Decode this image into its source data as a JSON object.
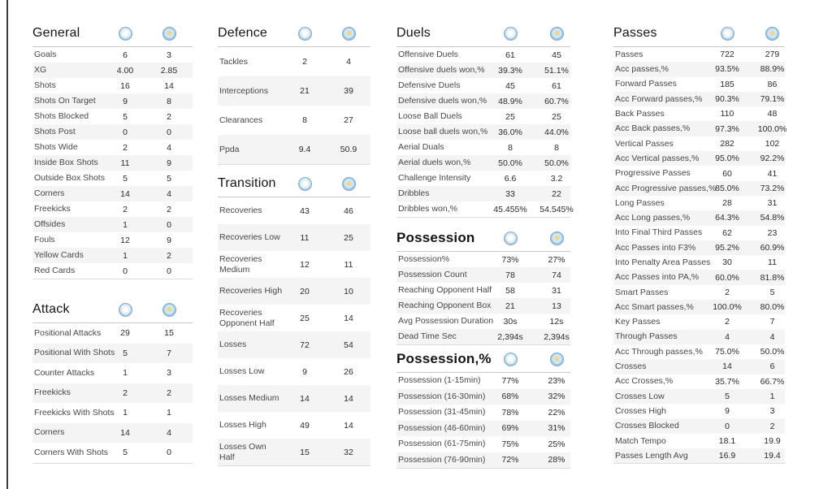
{
  "badges": {
    "home_icon": "man-city-badge-icon",
    "away_icon": "leicester-badge-icon",
    "home_color": "#a3c8e2",
    "away_color": "#9cc7e5"
  },
  "colors": {
    "row_stripe": "#f4f4f4",
    "edge_line": "#3b3b3b",
    "text": "#2b2b2b"
  },
  "columns": [
    {
      "sections": [
        {
          "title": "General",
          "rows": [
            {
              "label": "Goals",
              "home": "6",
              "away": "3"
            },
            {
              "label": "XG",
              "home": "4.00",
              "away": "2.85"
            },
            {
              "label": "Shots",
              "home": "16",
              "away": "14"
            },
            {
              "label": "Shots On Target",
              "home": "9",
              "away": "8"
            },
            {
              "label": "Shots Blocked",
              "home": "5",
              "away": "2"
            },
            {
              "label": "Shots Post",
              "home": "0",
              "away": "0"
            },
            {
              "label": "Shots Wide",
              "home": "2",
              "away": "4"
            },
            {
              "label": "Inside Box Shots",
              "home": "11",
              "away": "9"
            },
            {
              "label": "Outside Box Shots",
              "home": "5",
              "away": "5"
            },
            {
              "label": "Corners",
              "home": "14",
              "away": "4"
            },
            {
              "label": "Freekicks",
              "home": "2",
              "away": "2"
            },
            {
              "label": "Offsides",
              "home": "1",
              "away": "0"
            },
            {
              "label": "Fouls",
              "home": "12",
              "away": "9"
            },
            {
              "label": "Yellow Cards",
              "home": "1",
              "away": "2"
            },
            {
              "label": "Red Cards",
              "home": "0",
              "away": "0"
            }
          ]
        },
        {
          "title": "Attack",
          "rows": [
            {
              "label": "Positional Attacks",
              "home": "29",
              "away": "15"
            },
            {
              "label": "Positional With Shots",
              "home": "5",
              "away": "7"
            },
            {
              "label": "Counter Attacks",
              "home": "1",
              "away": "3"
            },
            {
              "label": "Freekicks",
              "home": "2",
              "away": "2"
            },
            {
              "label": "Freekicks With Shots",
              "home": "1",
              "away": "1"
            },
            {
              "label": "Corners",
              "home": "14",
              "away": "4"
            },
            {
              "label": "Corners With Shots",
              "home": "5",
              "away": "0"
            }
          ]
        }
      ]
    },
    {
      "sections": [
        {
          "title": "Defence",
          "rows": [
            {
              "label": "Tackles",
              "home": "2",
              "away": "4"
            },
            {
              "label": "Interceptions",
              "home": "21",
              "away": "39"
            },
            {
              "label": "Clearances",
              "home": "8",
              "away": "27"
            },
            {
              "label": "Ppda",
              "home": "9.4",
              "away": "50.9"
            }
          ]
        },
        {
          "title": "Transition",
          "rows": [
            {
              "label": "Recoveries",
              "home": "43",
              "away": "46"
            },
            {
              "label": "Recoveries Low",
              "home": "11",
              "away": "25"
            },
            {
              "label": "Recoveries Medium",
              "home": "12",
              "away": "11"
            },
            {
              "label": "Recoveries High",
              "home": "20",
              "away": "10"
            },
            {
              "label": "Recoveries Opponent Half",
              "home": "25",
              "away": "14"
            },
            {
              "label": "Losses",
              "home": "72",
              "away": "54"
            },
            {
              "label": "Losses Low",
              "home": "9",
              "away": "26"
            },
            {
              "label": "Losses Medium",
              "home": "14",
              "away": "14"
            },
            {
              "label": "Losses High",
              "home": "49",
              "away": "14"
            },
            {
              "label": "Losses Own Half",
              "home": "15",
              "away": "32"
            }
          ]
        }
      ]
    },
    {
      "sections": [
        {
          "title": "Duels",
          "rows": [
            {
              "label": "Offensive Duels",
              "home": "61",
              "away": "45"
            },
            {
              "label": "Offensive duels won,%",
              "home": "39.3%",
              "away": "51.1%"
            },
            {
              "label": "Defensive Duels",
              "home": "45",
              "away": "61"
            },
            {
              "label": "Defensive duels won,%",
              "home": "48.9%",
              "away": "60.7%"
            },
            {
              "label": "Loose Ball Duels",
              "home": "25",
              "away": "25"
            },
            {
              "label": "Loose ball duels won,%",
              "home": "36.0%",
              "away": "44.0%"
            },
            {
              "label": "Aerial Duals",
              "home": "8",
              "away": "8"
            },
            {
              "label": "Aerial duels won,%",
              "home": "50.0%",
              "away": "50.0%"
            },
            {
              "label": "Challenge Intensity",
              "home": "6.6",
              "away": "3.2"
            },
            {
              "label": "Dribbles",
              "home": "33",
              "away": "22"
            },
            {
              "label": "Dribbles won,%",
              "home": "45.455%",
              "away": "54.545%"
            }
          ]
        },
        {
          "title": "Possession",
          "rows": [
            {
              "label": "Possession%",
              "home": "73%",
              "away": "27%"
            },
            {
              "label": "Possession Count",
              "home": "78",
              "away": "74"
            },
            {
              "label": "Reaching Opponent Half",
              "home": "58",
              "away": "31"
            },
            {
              "label": "Reaching Opponent Box",
              "home": "21",
              "away": "13"
            },
            {
              "label": "Avg Possession Duration",
              "home": "30s",
              "away": "12s"
            },
            {
              "label": "Dead Time Sec",
              "home": "2,394s",
              "away": "2,394s"
            }
          ]
        },
        {
          "title": "Possession,%",
          "rows": [
            {
              "label": "Possession (1-15min)",
              "home": "77%",
              "away": "23%"
            },
            {
              "label": "Possession (16-30min)",
              "home": "68%",
              "away": "32%"
            },
            {
              "label": "Possession (31-45min)",
              "home": "78%",
              "away": "22%"
            },
            {
              "label": "Possession (46-60min)",
              "home": "69%",
              "away": "31%"
            },
            {
              "label": "Possession (61-75min)",
              "home": "75%",
              "away": "25%"
            },
            {
              "label": "Possession (76-90min)",
              "home": "72%",
              "away": "28%"
            }
          ]
        }
      ]
    },
    {
      "sections": [
        {
          "title": "Passes",
          "rows": [
            {
              "label": "Passes",
              "home": "722",
              "away": "279"
            },
            {
              "label": "Acc passes,%",
              "home": "93.5%",
              "away": "88.9%"
            },
            {
              "label": "Forward Passes",
              "home": "185",
              "away": "86"
            },
            {
              "label": "Acc Forward passes,%",
              "home": "90.3%",
              "away": "79.1%"
            },
            {
              "label": "Back Passes",
              "home": "110",
              "away": "48"
            },
            {
              "label": "Acc Back passes,%",
              "home": "97.3%",
              "away": "100.0%"
            },
            {
              "label": "Vertical Passes",
              "home": "282",
              "away": "102"
            },
            {
              "label": "Acc Vertical passes,%",
              "home": "95.0%",
              "away": "92.2%"
            },
            {
              "label": "Progressive Passes",
              "home": "60",
              "away": "41"
            },
            {
              "label": "Acc Progressive passes,%",
              "home": "85.0%",
              "away": "73.2%"
            },
            {
              "label": "Long Passes",
              "home": "28",
              "away": "31"
            },
            {
              "label": "Acc Long passes,%",
              "home": "64.3%",
              "away": "54.8%"
            },
            {
              "label": "Into Final Third Passes",
              "home": "62",
              "away": "23"
            },
            {
              "label": "Acc Passes into F3%",
              "home": "95.2%",
              "away": "60.9%"
            },
            {
              "label": "Into Penalty Area Passes",
              "home": "30",
              "away": "11"
            },
            {
              "label": "Acc Passes into PA,%",
              "home": "60.0%",
              "away": "81.8%"
            },
            {
              "label": "Smart Passes",
              "home": "2",
              "away": "5"
            },
            {
              "label": "Acc Smart passes,%",
              "home": "100.0%",
              "away": "80.0%"
            },
            {
              "label": "Key Passes",
              "home": "2",
              "away": "7"
            },
            {
              "label": "Through Passes",
              "home": "4",
              "away": "4"
            },
            {
              "label": "Acc Through passes,%",
              "home": "75.0%",
              "away": "50.0%"
            },
            {
              "label": "Crosses",
              "home": "14",
              "away": "6"
            },
            {
              "label": "Acc Crosses,%",
              "home": "35.7%",
              "away": "66.7%"
            },
            {
              "label": "Crosses Low",
              "home": "5",
              "away": "1"
            },
            {
              "label": "Crosses High",
              "home": "9",
              "away": "3"
            },
            {
              "label": "Crosses Blocked",
              "home": "0",
              "away": "2"
            },
            {
              "label": "Match Tempo",
              "home": "18.1",
              "away": "19.9"
            },
            {
              "label": "Passes Length Avg",
              "home": "16.9",
              "away": "19.4"
            }
          ]
        }
      ]
    }
  ]
}
